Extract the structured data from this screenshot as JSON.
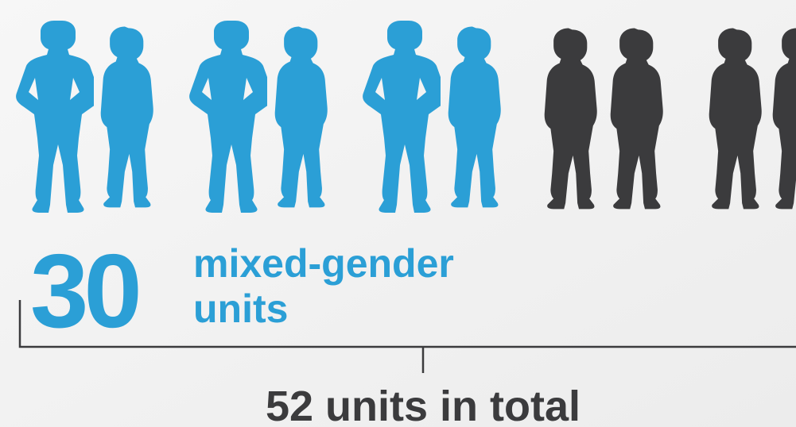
{
  "highlight": {
    "number": "30",
    "label_lines": [
      "mixed-gender",
      "units"
    ]
  },
  "total": "52 units in total"
}
